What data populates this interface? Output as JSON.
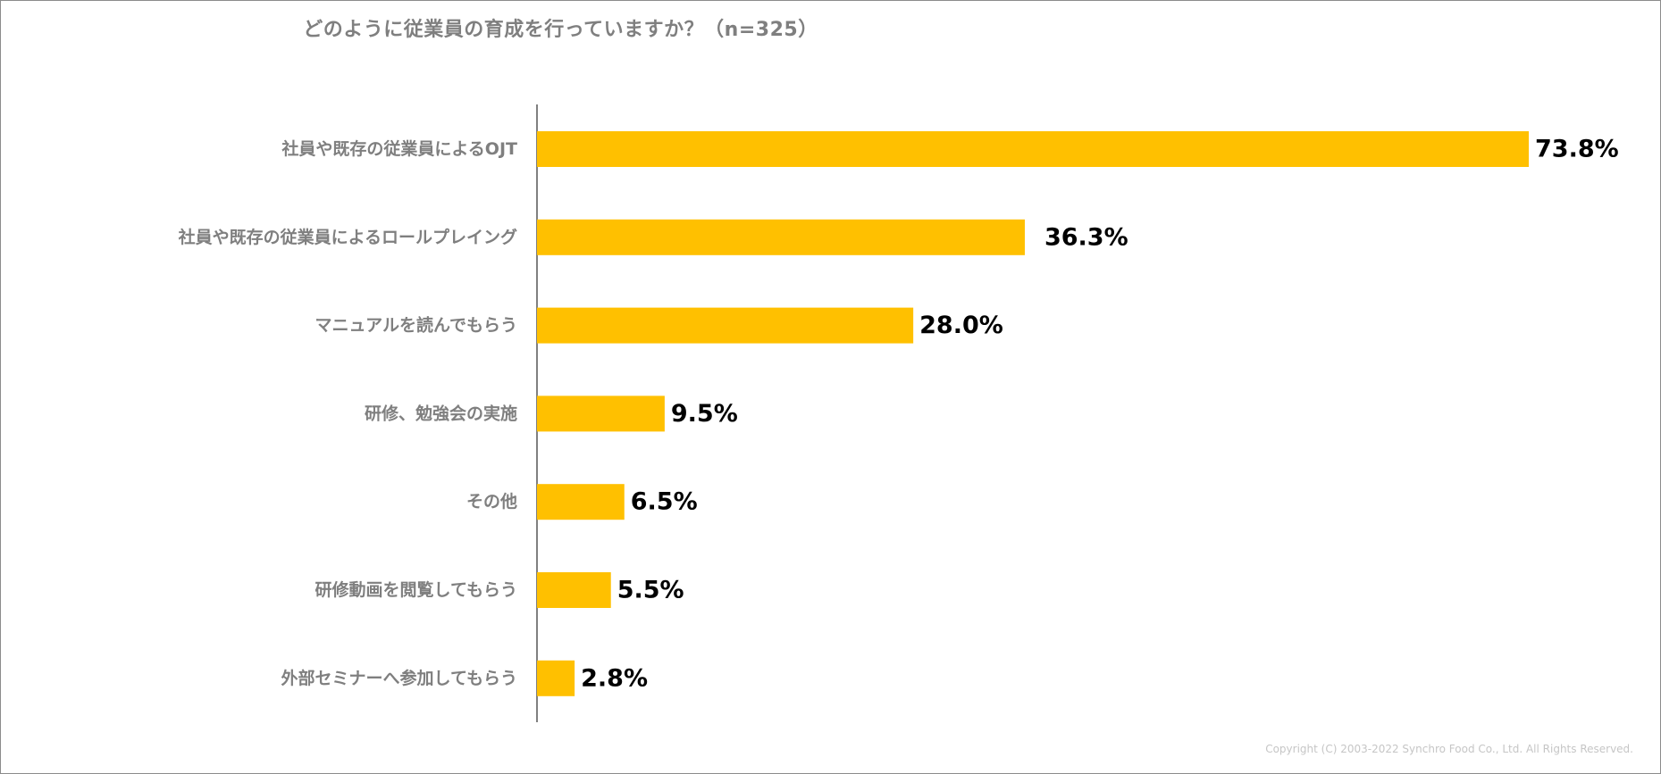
{
  "chart_data": {
    "type": "bar",
    "orientation": "horizontal",
    "title": "どのように従業員の育成を行っていますか？（n=325）",
    "categories": [
      "社員や既存の従業員によるOJT",
      "社員や既存の従業員によるロールプレイング",
      "マニュアルを読んでもらう",
      "研修、勉強会の実施",
      "その他",
      "研修動画を閲覧してもらう",
      "外部セミナーへ参加してもらう"
    ],
    "values": [
      73.8,
      36.3,
      28.0,
      9.5,
      6.5,
      5.5,
      2.8
    ],
    "value_labels": [
      "73.8%",
      "36.3%",
      "28.0%",
      "9.5%",
      "6.5%",
      "5.5%",
      "2.8%"
    ],
    "unit": "%",
    "xlim": [
      0,
      80
    ],
    "grid": false,
    "legend": "none",
    "bar_color": "#FFC000"
  },
  "footer": {
    "copyright": "Copyright (C) 2003-2022   Synchro Food Co., Ltd. All Rights Reserved."
  }
}
